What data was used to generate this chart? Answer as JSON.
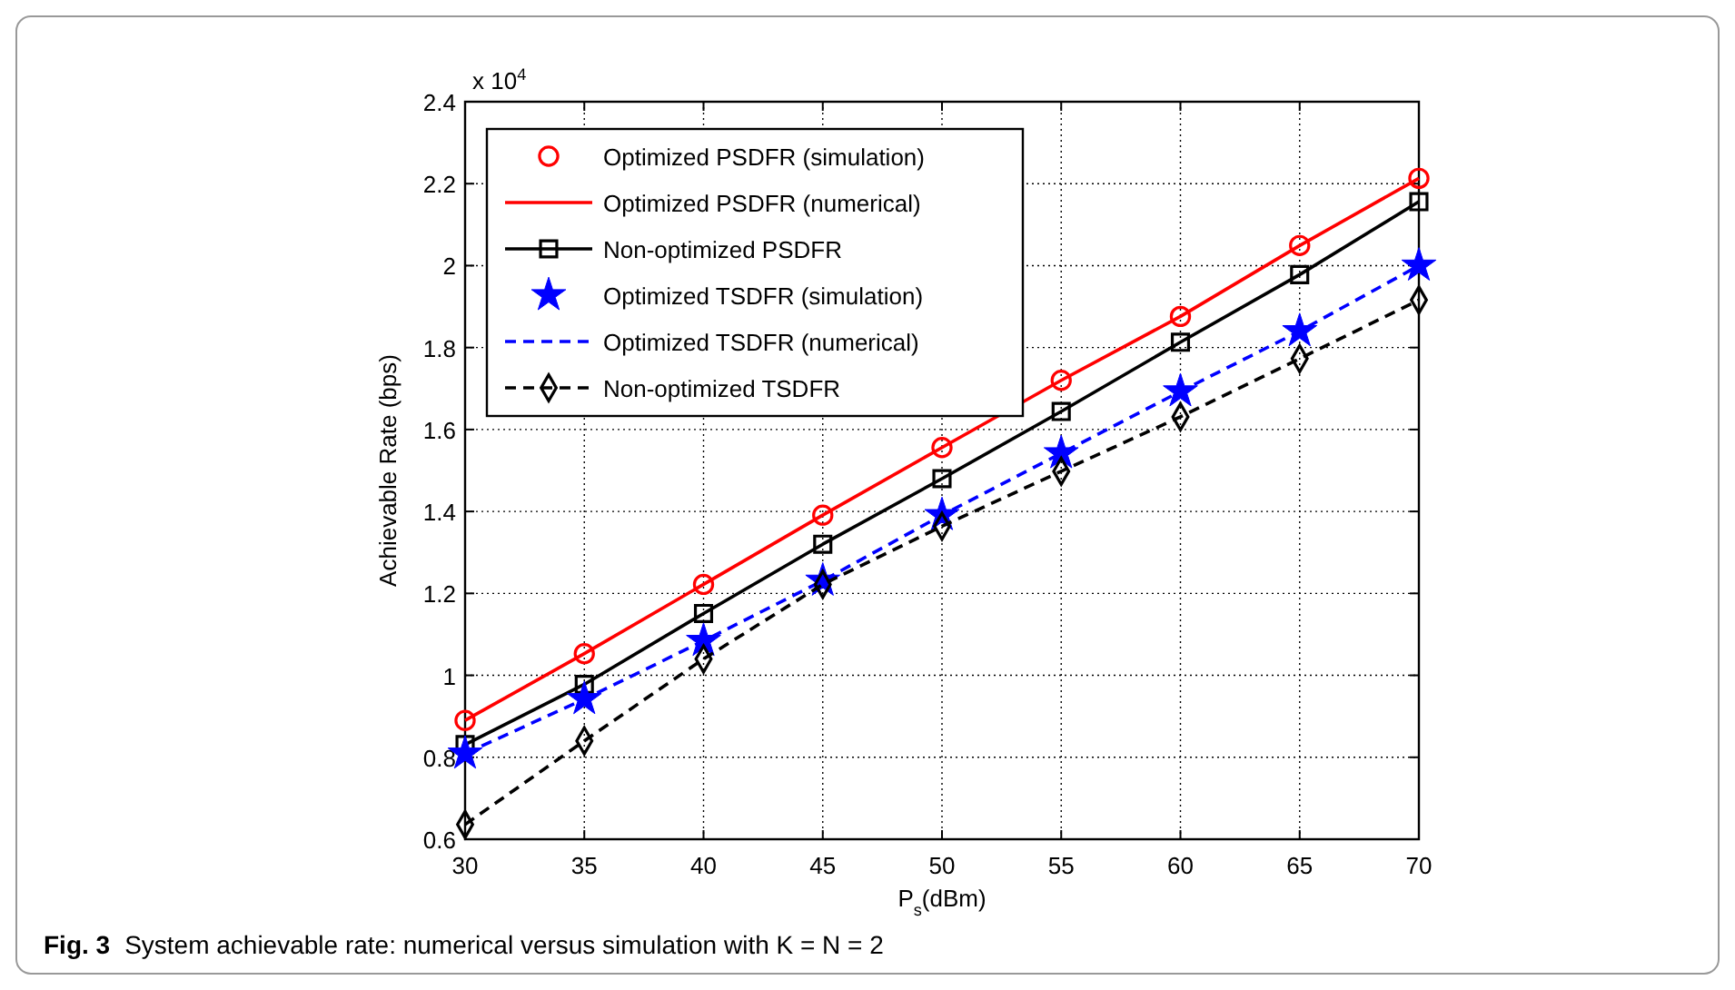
{
  "chart_data": {
    "type": "line",
    "xlabel": "P$_{s}$(dBm)",
    "ylabel": "Achievable Rate (bps)",
    "x": [
      30,
      35,
      40,
      45,
      50,
      55,
      60,
      65,
      70
    ],
    "xlim": [
      30,
      70
    ],
    "xticks": [
      30,
      35,
      40,
      45,
      50,
      55,
      60,
      65,
      70
    ],
    "ylim": [
      0.6,
      2.4
    ],
    "yticks": [
      0.6,
      0.8,
      {
        "value": 1,
        "label": "1"
      },
      1.2,
      1.4,
      1.6,
      1.8,
      {
        "value": 2,
        "label": "2"
      },
      2.2,
      2.4
    ],
    "grid": true,
    "legend": "top left",
    "annotations": [
      "x 10$^{4}$",
      "Fig. 3",
      "System achievable rate: numerical versus simulation with K = N = 2"
    ],
    "series": [
      {
        "name": "Optimized PSDFR (simulation)",
        "type": "scatter",
        "color": "#ff0000",
        "marker": "circle",
        "values": [
          0.89,
          1.053,
          1.222,
          1.391,
          1.556,
          1.72,
          1.876,
          2.049,
          2.213
        ]
      },
      {
        "name": "Optimized PSDFR (numerical)",
        "color": "#ff0000",
        "marker": "none",
        "line_style": "solid",
        "values": [
          0.89,
          1.053,
          1.222,
          1.391,
          1.556,
          1.72,
          1.876,
          2.049,
          2.213
        ]
      },
      {
        "name": "Non-optimized PSDFR",
        "color": "#000000",
        "marker": "square",
        "line_style": "solid",
        "values": [
          0.831,
          0.978,
          1.151,
          1.32,
          1.48,
          1.644,
          1.813,
          1.978,
          2.156
        ]
      },
      {
        "name": "Optimized TSDFR (simulation)",
        "type": "scatter",
        "color": "#0000ff",
        "marker": "star",
        "values": [
          0.809,
          0.942,
          1.084,
          1.231,
          1.391,
          1.542,
          1.693,
          1.84,
          2.0
        ]
      },
      {
        "name": "Optimized TSDFR (numerical)",
        "color": "#0000ff",
        "marker": "none",
        "line_style": "dashed",
        "values": [
          0.809,
          0.942,
          1.084,
          1.231,
          1.391,
          1.542,
          1.693,
          1.84,
          2.0
        ]
      },
      {
        "name": "Non-optimized TSDFR",
        "color": "#000000",
        "marker": "diamond",
        "line_style": "dashed",
        "values": [
          0.636,
          0.84,
          1.04,
          1.222,
          1.364,
          1.498,
          1.631,
          1.773,
          1.916
        ]
      }
    ]
  }
}
